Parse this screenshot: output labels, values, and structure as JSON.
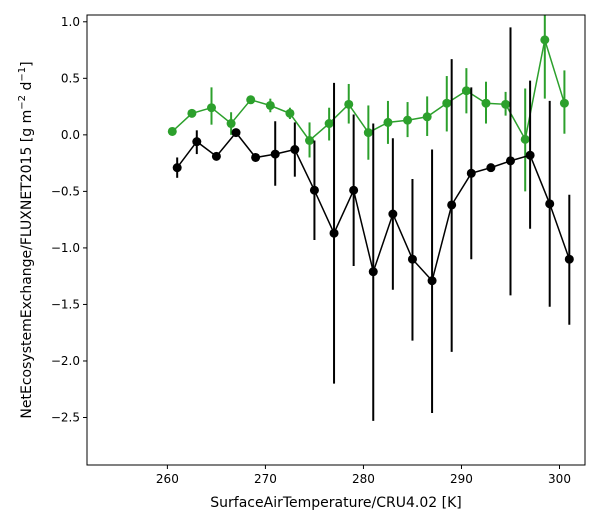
{
  "chart_data": {
    "type": "line",
    "title": "",
    "xlabel": "SurfaceAirTemperature/CRU4.02 [K]",
    "ylabel": "NetEcosystemExchange/FLUXNET2015 [g m$^{-2}$ d$^{-1}$]",
    "xlim": [
      251.8,
      302.6
    ],
    "ylim": [
      -2.92,
      1.06
    ],
    "xticks": [
      260,
      270,
      280,
      290,
      300
    ],
    "yticks": [
      -2.5,
      -2.0,
      -1.5,
      -1.0,
      -0.5,
      0.0,
      0.5,
      1.0
    ],
    "grid": false,
    "legend": "none",
    "series": [
      {
        "color": "#2ca02c",
        "points": [
          {
            "x": 260.5,
            "y": 0.03,
            "lo": 0.03,
            "hi": 0.03
          },
          {
            "x": 262.5,
            "y": 0.19,
            "lo": 0.19,
            "hi": 0.19
          },
          {
            "x": 264.5,
            "y": 0.24,
            "lo": 0.09,
            "hi": 0.42
          },
          {
            "x": 266.5,
            "y": 0.1,
            "lo": 0.0,
            "hi": 0.2
          },
          {
            "x": 268.5,
            "y": 0.31,
            "lo": 0.31,
            "hi": 0.31
          },
          {
            "x": 270.5,
            "y": 0.26,
            "lo": 0.2,
            "hi": 0.32
          },
          {
            "x": 272.5,
            "y": 0.19,
            "lo": 0.14,
            "hi": 0.24
          },
          {
            "x": 274.5,
            "y": -0.05,
            "lo": -0.2,
            "hi": 0.11
          },
          {
            "x": 276.5,
            "y": 0.1,
            "lo": -0.05,
            "hi": 0.24
          },
          {
            "x": 278.5,
            "y": 0.27,
            "lo": 0.1,
            "hi": 0.45
          },
          {
            "x": 280.5,
            "y": 0.02,
            "lo": -0.22,
            "hi": 0.26
          },
          {
            "x": 282.5,
            "y": 0.11,
            "lo": -0.08,
            "hi": 0.3
          },
          {
            "x": 284.5,
            "y": 0.13,
            "lo": -0.02,
            "hi": 0.29
          },
          {
            "x": 286.5,
            "y": 0.16,
            "lo": -0.01,
            "hi": 0.34
          },
          {
            "x": 288.5,
            "y": 0.28,
            "lo": 0.03,
            "hi": 0.52
          },
          {
            "x": 290.5,
            "y": 0.39,
            "lo": 0.19,
            "hi": 0.59
          },
          {
            "x": 292.5,
            "y": 0.28,
            "lo": 0.1,
            "hi": 0.47
          },
          {
            "x": 294.5,
            "y": 0.27,
            "lo": 0.17,
            "hi": 0.38
          },
          {
            "x": 296.5,
            "y": -0.04,
            "lo": -0.5,
            "hi": 0.41
          },
          {
            "x": 298.5,
            "y": 0.84,
            "lo": 0.32,
            "hi": 1.06
          },
          {
            "x": 300.5,
            "y": 0.28,
            "lo": 0.01,
            "hi": 0.57
          }
        ]
      },
      {
        "color": "#000000",
        "points": [
          {
            "x": 261.0,
            "y": -0.29,
            "lo": -0.38,
            "hi": -0.2
          },
          {
            "x": 263.0,
            "y": -0.06,
            "lo": -0.17,
            "hi": 0.04
          },
          {
            "x": 265.0,
            "y": -0.19,
            "lo": -0.19,
            "hi": -0.19
          },
          {
            "x": 267.0,
            "y": 0.02,
            "lo": 0.02,
            "hi": 0.02
          },
          {
            "x": 269.0,
            "y": -0.2,
            "lo": -0.2,
            "hi": -0.2
          },
          {
            "x": 271.0,
            "y": -0.17,
            "lo": -0.45,
            "hi": 0.12
          },
          {
            "x": 273.0,
            "y": -0.13,
            "lo": -0.37,
            "hi": 0.11
          },
          {
            "x": 275.0,
            "y": -0.49,
            "lo": -0.93,
            "hi": -0.05
          },
          {
            "x": 277.0,
            "y": -0.87,
            "lo": -2.2,
            "hi": 0.46
          },
          {
            "x": 279.0,
            "y": -0.49,
            "lo": -1.16,
            "hi": 0.18
          },
          {
            "x": 281.0,
            "y": -1.21,
            "lo": -2.53,
            "hi": 0.1
          },
          {
            "x": 283.0,
            "y": -0.7,
            "lo": -1.37,
            "hi": -0.03
          },
          {
            "x": 285.0,
            "y": -1.1,
            "lo": -1.82,
            "hi": -0.39
          },
          {
            "x": 287.0,
            "y": -1.29,
            "lo": -2.46,
            "hi": -0.13
          },
          {
            "x": 289.0,
            "y": -0.62,
            "lo": -1.92,
            "hi": 0.67
          },
          {
            "x": 291.0,
            "y": -0.34,
            "lo": -1.1,
            "hi": 0.42
          },
          {
            "x": 293.0,
            "y": -0.29,
            "lo": -0.29,
            "hi": -0.29
          },
          {
            "x": 295.0,
            "y": -0.23,
            "lo": -1.42,
            "hi": 0.95
          },
          {
            "x": 297.0,
            "y": -0.18,
            "lo": -0.83,
            "hi": 0.48
          },
          {
            "x": 299.0,
            "y": -0.61,
            "lo": -1.52,
            "hi": 0.3
          },
          {
            "x": 301.0,
            "y": -1.1,
            "lo": -1.68,
            "hi": -0.53
          }
        ]
      }
    ]
  }
}
